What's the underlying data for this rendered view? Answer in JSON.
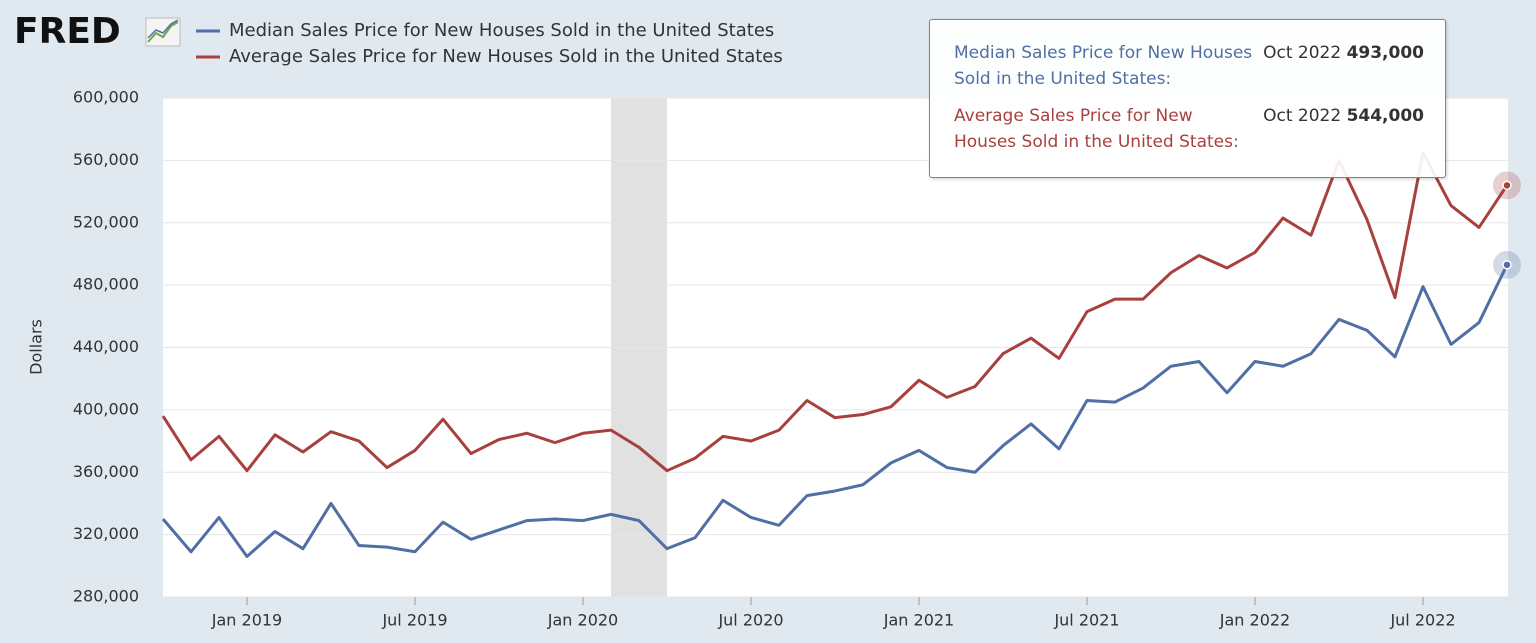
{
  "brand": "FRED",
  "chart_data": {
    "type": "line",
    "y_label": "Dollars",
    "x": [
      "2018-10",
      "2018-11",
      "2018-12",
      "2019-01",
      "2019-02",
      "2019-03",
      "2019-04",
      "2019-05",
      "2019-06",
      "2019-07",
      "2019-08",
      "2019-09",
      "2019-10",
      "2019-11",
      "2019-12",
      "2020-01",
      "2020-02",
      "2020-03",
      "2020-04",
      "2020-05",
      "2020-06",
      "2020-07",
      "2020-08",
      "2020-09",
      "2020-10",
      "2020-11",
      "2020-12",
      "2021-01",
      "2021-02",
      "2021-03",
      "2021-04",
      "2021-05",
      "2021-06",
      "2021-07",
      "2021-08",
      "2021-09",
      "2021-10",
      "2021-11",
      "2021-12",
      "2022-01",
      "2022-02",
      "2022-03",
      "2022-04",
      "2022-05",
      "2022-06",
      "2022-07",
      "2022-08",
      "2022-09",
      "2022-10"
    ],
    "series": [
      {
        "name": "Median Sales Price for New Houses Sold in the United States",
        "color": "#4f6fa5",
        "values": [
          330000,
          309000,
          331000,
          306000,
          322000,
          311000,
          340000,
          313000,
          312000,
          309000,
          328000,
          317000,
          323000,
          329000,
          330000,
          329000,
          333000,
          329000,
          311000,
          318000,
          342000,
          331000,
          326000,
          345000,
          348000,
          352000,
          366000,
          374000,
          363000,
          360000,
          377000,
          391000,
          375000,
          406000,
          405000,
          414000,
          428000,
          431000,
          411000,
          431000,
          428000,
          436000,
          458000,
          451000,
          434000,
          479000,
          442000,
          456000,
          493000
        ]
      },
      {
        "name": "Average Sales Price for New Houses Sold in the United States",
        "color": "#a8403e",
        "values": [
          396000,
          368000,
          383000,
          361000,
          384000,
          373000,
          386000,
          380000,
          363000,
          374000,
          394000,
          372000,
          381000,
          385000,
          379000,
          385000,
          387000,
          376000,
          361000,
          369000,
          383000,
          380000,
          387000,
          406000,
          395000,
          397000,
          402000,
          419000,
          408000,
          415000,
          436000,
          446000,
          433000,
          463000,
          471000,
          471000,
          488000,
          499000,
          491000,
          501000,
          523000,
          512000,
          560000,
          522000,
          472000,
          565000,
          531000,
          517000,
          544000
        ]
      }
    ],
    "ylim": [
      280000,
      600000
    ],
    "yticks": [
      {
        "value": 280000,
        "label": "280,000"
      },
      {
        "value": 320000,
        "label": "320,000"
      },
      {
        "value": 360000,
        "label": "360,000"
      },
      {
        "value": 400000,
        "label": "400,000"
      },
      {
        "value": 440000,
        "label": "440,000"
      },
      {
        "value": 480000,
        "label": "480,000"
      },
      {
        "value": 520000,
        "label": "520,000"
      },
      {
        "value": 560000,
        "label": "560,000"
      },
      {
        "value": 600000,
        "label": "600,000"
      }
    ],
    "xticks": [
      {
        "value": "2019-01",
        "label": "Jan 2019"
      },
      {
        "value": "2019-07",
        "label": "Jul 2019"
      },
      {
        "value": "2020-01",
        "label": "Jan 2020"
      },
      {
        "value": "2020-07",
        "label": "Jul 2020"
      },
      {
        "value": "2021-01",
        "label": "Jan 2021"
      },
      {
        "value": "2021-07",
        "label": "Jul 2021"
      },
      {
        "value": "2022-01",
        "label": "Jan 2022"
      },
      {
        "value": "2022-07",
        "label": "Jul 2022"
      }
    ],
    "recession": [
      "2020-02",
      "2020-04"
    ],
    "grid": true,
    "tooltip": {
      "entries": [
        {
          "label": "Median Sales Price for New Houses Sold in the United States:",
          "date": "Oct 2022",
          "value": 493000,
          "value_label": "493,000"
        },
        {
          "label": "Average Sales Price for New Houses Sold in the United States:",
          "date": "Oct 2022",
          "value": 544000,
          "value_label": "544,000"
        }
      ]
    }
  }
}
